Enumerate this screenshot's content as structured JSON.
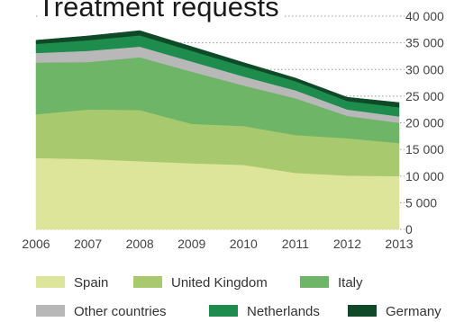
{
  "chart_data": {
    "type": "area",
    "stacked": true,
    "title": "Treatment requests",
    "xlabel": "",
    "ylabel": "",
    "x": [
      "2006",
      "2007",
      "2008",
      "2009",
      "2010",
      "2011",
      "2012",
      "2013"
    ],
    "ylim": [
      0,
      40000
    ],
    "yticks": [
      0,
      5000,
      10000,
      15000,
      20000,
      25000,
      30000,
      35000,
      40000
    ],
    "ytick_labels": [
      "0",
      "5 000",
      "10 000",
      "15 000",
      "20 000",
      "25 000",
      "30 000",
      "35 000",
      "40 000"
    ],
    "y_axis_position": "right",
    "grid": "horizontal dotted",
    "legend_position": "bottom",
    "series": [
      {
        "name": "Spain",
        "color": "#dde59a",
        "values": [
          13400,
          13200,
          12800,
          12400,
          12100,
          10600,
          10100,
          10000
        ]
      },
      {
        "name": "United Kingdom",
        "color": "#a9c96e",
        "values": [
          8200,
          9300,
          9600,
          7400,
          7300,
          7100,
          7000,
          6200
        ]
      },
      {
        "name": "Italy",
        "color": "#6fb567",
        "values": [
          9700,
          8900,
          9900,
          9800,
          7600,
          6900,
          4200,
          3800
        ]
      },
      {
        "name": "Other countries",
        "color": "#b8b8b8",
        "values": [
          1800,
          2100,
          2000,
          1900,
          1700,
          1500,
          1200,
          1200
        ]
      },
      {
        "name": "Netherlands",
        "color": "#1e8c4c",
        "values": [
          1700,
          2000,
          2100,
          2000,
          1900,
          1700,
          1600,
          1700
        ]
      },
      {
        "name": "Germany",
        "color": "#0e4a27",
        "values": [
          700,
          800,
          900,
          800,
          700,
          600,
          700,
          900
        ]
      }
    ]
  }
}
